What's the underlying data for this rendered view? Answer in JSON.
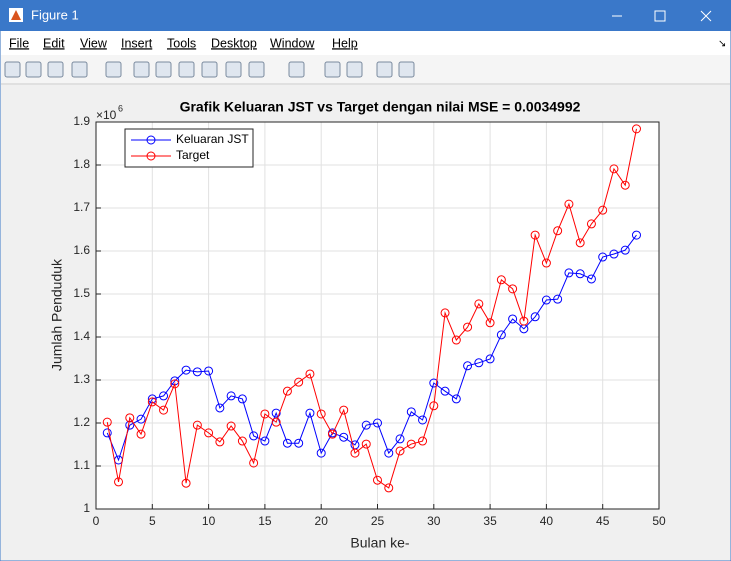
{
  "window": {
    "title": "Figure 1",
    "menu": [
      "File",
      "Edit",
      "View",
      "Insert",
      "Tools",
      "Desktop",
      "Window",
      "Help"
    ]
  },
  "chart_data": {
    "type": "line",
    "title": "Grafik Keluaran JST vs Target dengan nilai MSE = 0.0034992",
    "x_label": "Bulan ke-",
    "y_label": "Jumlah Penduduk",
    "y_multiplier": {
      "base": "×10",
      "exponent": "6"
    },
    "x": [
      1,
      2,
      3,
      4,
      5,
      6,
      7,
      8,
      9,
      10,
      11,
      12,
      13,
      14,
      15,
      16,
      17,
      18,
      19,
      20,
      21,
      22,
      23,
      24,
      25,
      26,
      27,
      28,
      29,
      30,
      31,
      32,
      33,
      34,
      35,
      36,
      37,
      38,
      39,
      40,
      41,
      42,
      43,
      44,
      45,
      46,
      47,
      48
    ],
    "series": [
      {
        "name": "Keluaran JST",
        "color": "#0000ff",
        "values": [
          1.177,
          1.114,
          1.195,
          1.209,
          1.256,
          1.263,
          1.298,
          1.323,
          1.319,
          1.321,
          1.235,
          1.263,
          1.256,
          1.17,
          1.158,
          1.223,
          1.153,
          1.153,
          1.223,
          1.13,
          1.177,
          1.167,
          1.149,
          1.195,
          1.2,
          1.13,
          1.163,
          1.226,
          1.207,
          1.293,
          1.274,
          1.256,
          1.333,
          1.34,
          1.349,
          1.405,
          1.442,
          1.419,
          1.447,
          1.486,
          1.488,
          1.549,
          1.547,
          1.535,
          1.586,
          1.593,
          1.602,
          1.637
        ]
      },
      {
        "name": "Target",
        "color": "#ff0000",
        "values": [
          1.202,
          1.063,
          1.212,
          1.174,
          1.249,
          1.23,
          1.291,
          1.06,
          1.195,
          1.177,
          1.156,
          1.193,
          1.158,
          1.107,
          1.221,
          1.202,
          1.274,
          1.295,
          1.314,
          1.221,
          1.174,
          1.23,
          1.13,
          1.151,
          1.067,
          1.049,
          1.135,
          1.151,
          1.158,
          1.24,
          1.456,
          1.393,
          1.423,
          1.477,
          1.433,
          1.533,
          1.512,
          1.437,
          1.637,
          1.572,
          1.647,
          1.709,
          1.619,
          1.663,
          1.695,
          1.791,
          1.753,
          1.884
        ]
      }
    ],
    "xlim": [
      0,
      50
    ],
    "xticks": [
      0,
      5,
      10,
      15,
      20,
      25,
      30,
      35,
      40,
      45,
      50
    ],
    "ylim": [
      1,
      1.9
    ],
    "yticks": [
      1,
      1.1,
      1.2,
      1.3,
      1.4,
      1.5,
      1.6,
      1.7,
      1.8,
      1.9
    ],
    "grid": true,
    "legend": "top-left",
    "marker": "circle"
  }
}
